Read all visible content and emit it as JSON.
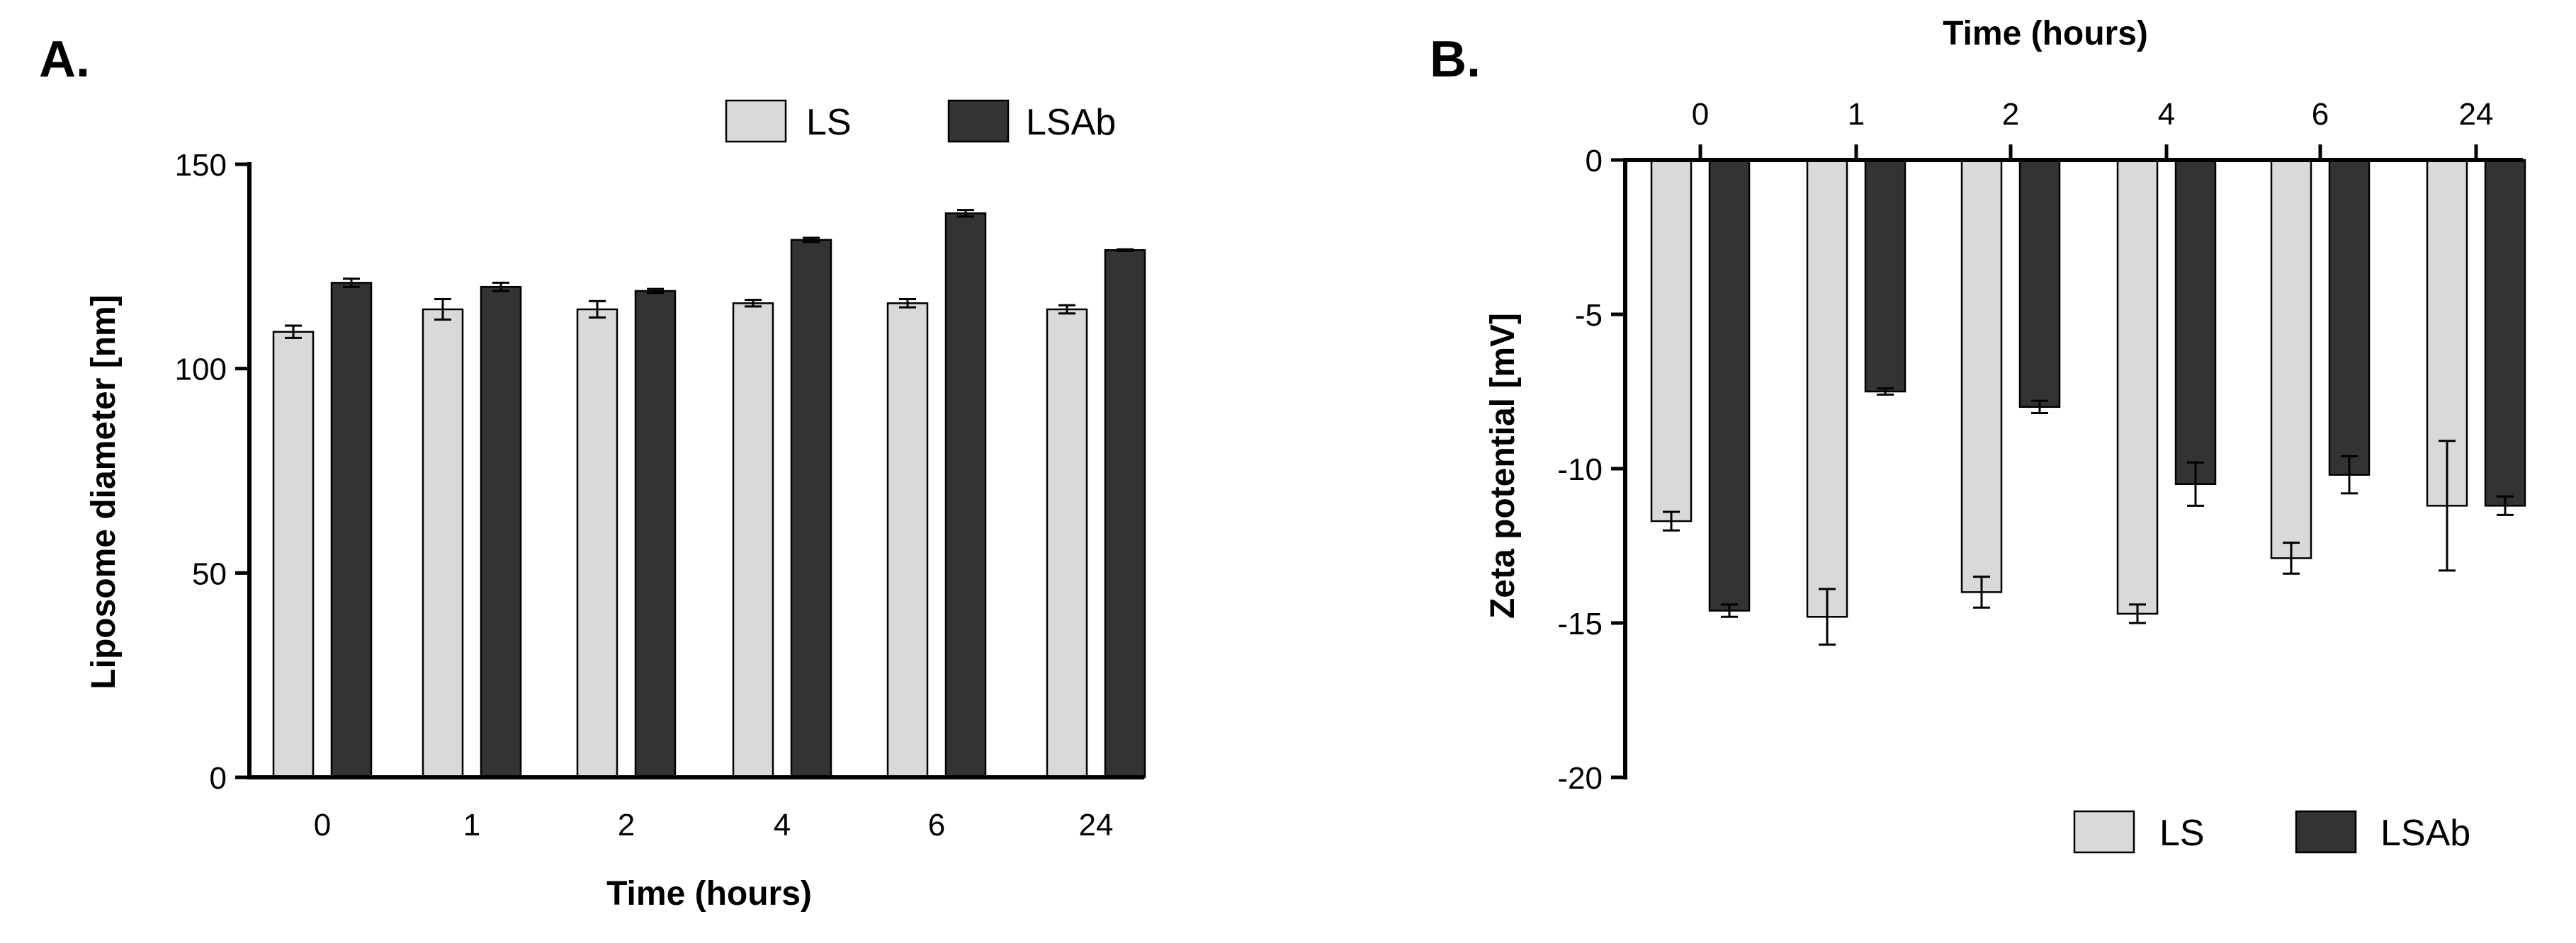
{
  "chart_data": [
    {
      "type": "bar",
      "panel": "A.",
      "title": "",
      "xlabel": "Time (hours)",
      "ylabel": "Liposome diameter [nm]",
      "ylim": [
        0,
        150
      ],
      "yticks": [
        "0",
        "50",
        "100",
        "150"
      ],
      "ytick_values": [
        0,
        50,
        100,
        150
      ],
      "categories": [
        "0",
        "1",
        "2",
        "4",
        "6",
        "24"
      ],
      "legend_position": "top-right",
      "series": [
        {
          "name": "LS",
          "color": "#d9d9d9",
          "values": [
            109,
            114.5,
            114.5,
            116,
            116,
            114.5
          ],
          "errors": [
            1.5,
            2.5,
            2,
            0.8,
            1,
            1
          ]
        },
        {
          "name": "LSAb",
          "color": "#333333",
          "values": [
            121,
            120,
            119,
            131.5,
            138,
            129
          ],
          "errors": [
            1,
            1,
            0.5,
            0.5,
            0.8,
            0.2
          ]
        }
      ]
    },
    {
      "type": "bar",
      "panel": "B.",
      "title": "",
      "xlabel": "Time (hours)",
      "ylabel": "Zeta potential [mV]",
      "ylim": [
        -20,
        0
      ],
      "yticks": [
        "0",
        "-5",
        "-10",
        "-15",
        "-20"
      ],
      "ytick_values": [
        0,
        -5,
        -10,
        -15,
        -20
      ],
      "categories": [
        "0",
        "1",
        "2",
        "4",
        "6",
        "24"
      ],
      "legend_position": "bottom-right",
      "series": [
        {
          "name": "LS",
          "color": "#d9d9d9",
          "values": [
            -11.7,
            -14.8,
            -14,
            -14.7,
            -12.9,
            -11.2
          ],
          "errors": [
            0.3,
            0.9,
            0.5,
            0.3,
            0.5,
            2.1
          ]
        },
        {
          "name": "LSAb",
          "color": "#333333",
          "values": [
            -14.6,
            -7.5,
            -8,
            -10.5,
            -10.2,
            -11.2
          ],
          "errors": [
            0.2,
            0.1,
            0.2,
            0.7,
            0.6,
            0.3
          ]
        }
      ]
    }
  ]
}
